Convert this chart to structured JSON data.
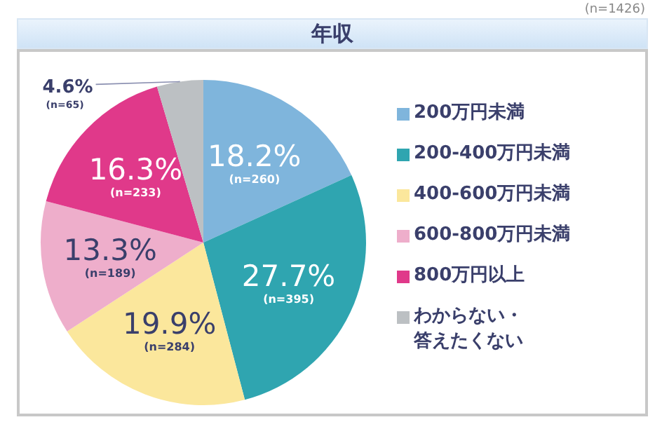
{
  "chart_data": {
    "type": "pie",
    "title": "年収",
    "subtitle": "(n=1426)",
    "categories": [
      "200万円未満",
      "200-400万円未満",
      "400-600万円未満",
      "600-800万円未満",
      "800万円以上",
      "わからない・答えたくない"
    ],
    "values": [
      18.2,
      27.7,
      19.9,
      13.3,
      16.3,
      4.6
    ],
    "colors": [
      "#7fb5dc",
      "#2fa5b0",
      "#fbe79c",
      "#eeaecb",
      "#e0398a",
      "#bcc0c3"
    ],
    "value_labels": [
      "18.2%\n(n=260)",
      "27.7%\n(n=395)",
      "19.9%\n(n=284)",
      "13.3%\n(n=189)",
      "16.3%\n(n=233)",
      "4.6%\n(n=65)"
    ],
    "legend": "right"
  }
}
